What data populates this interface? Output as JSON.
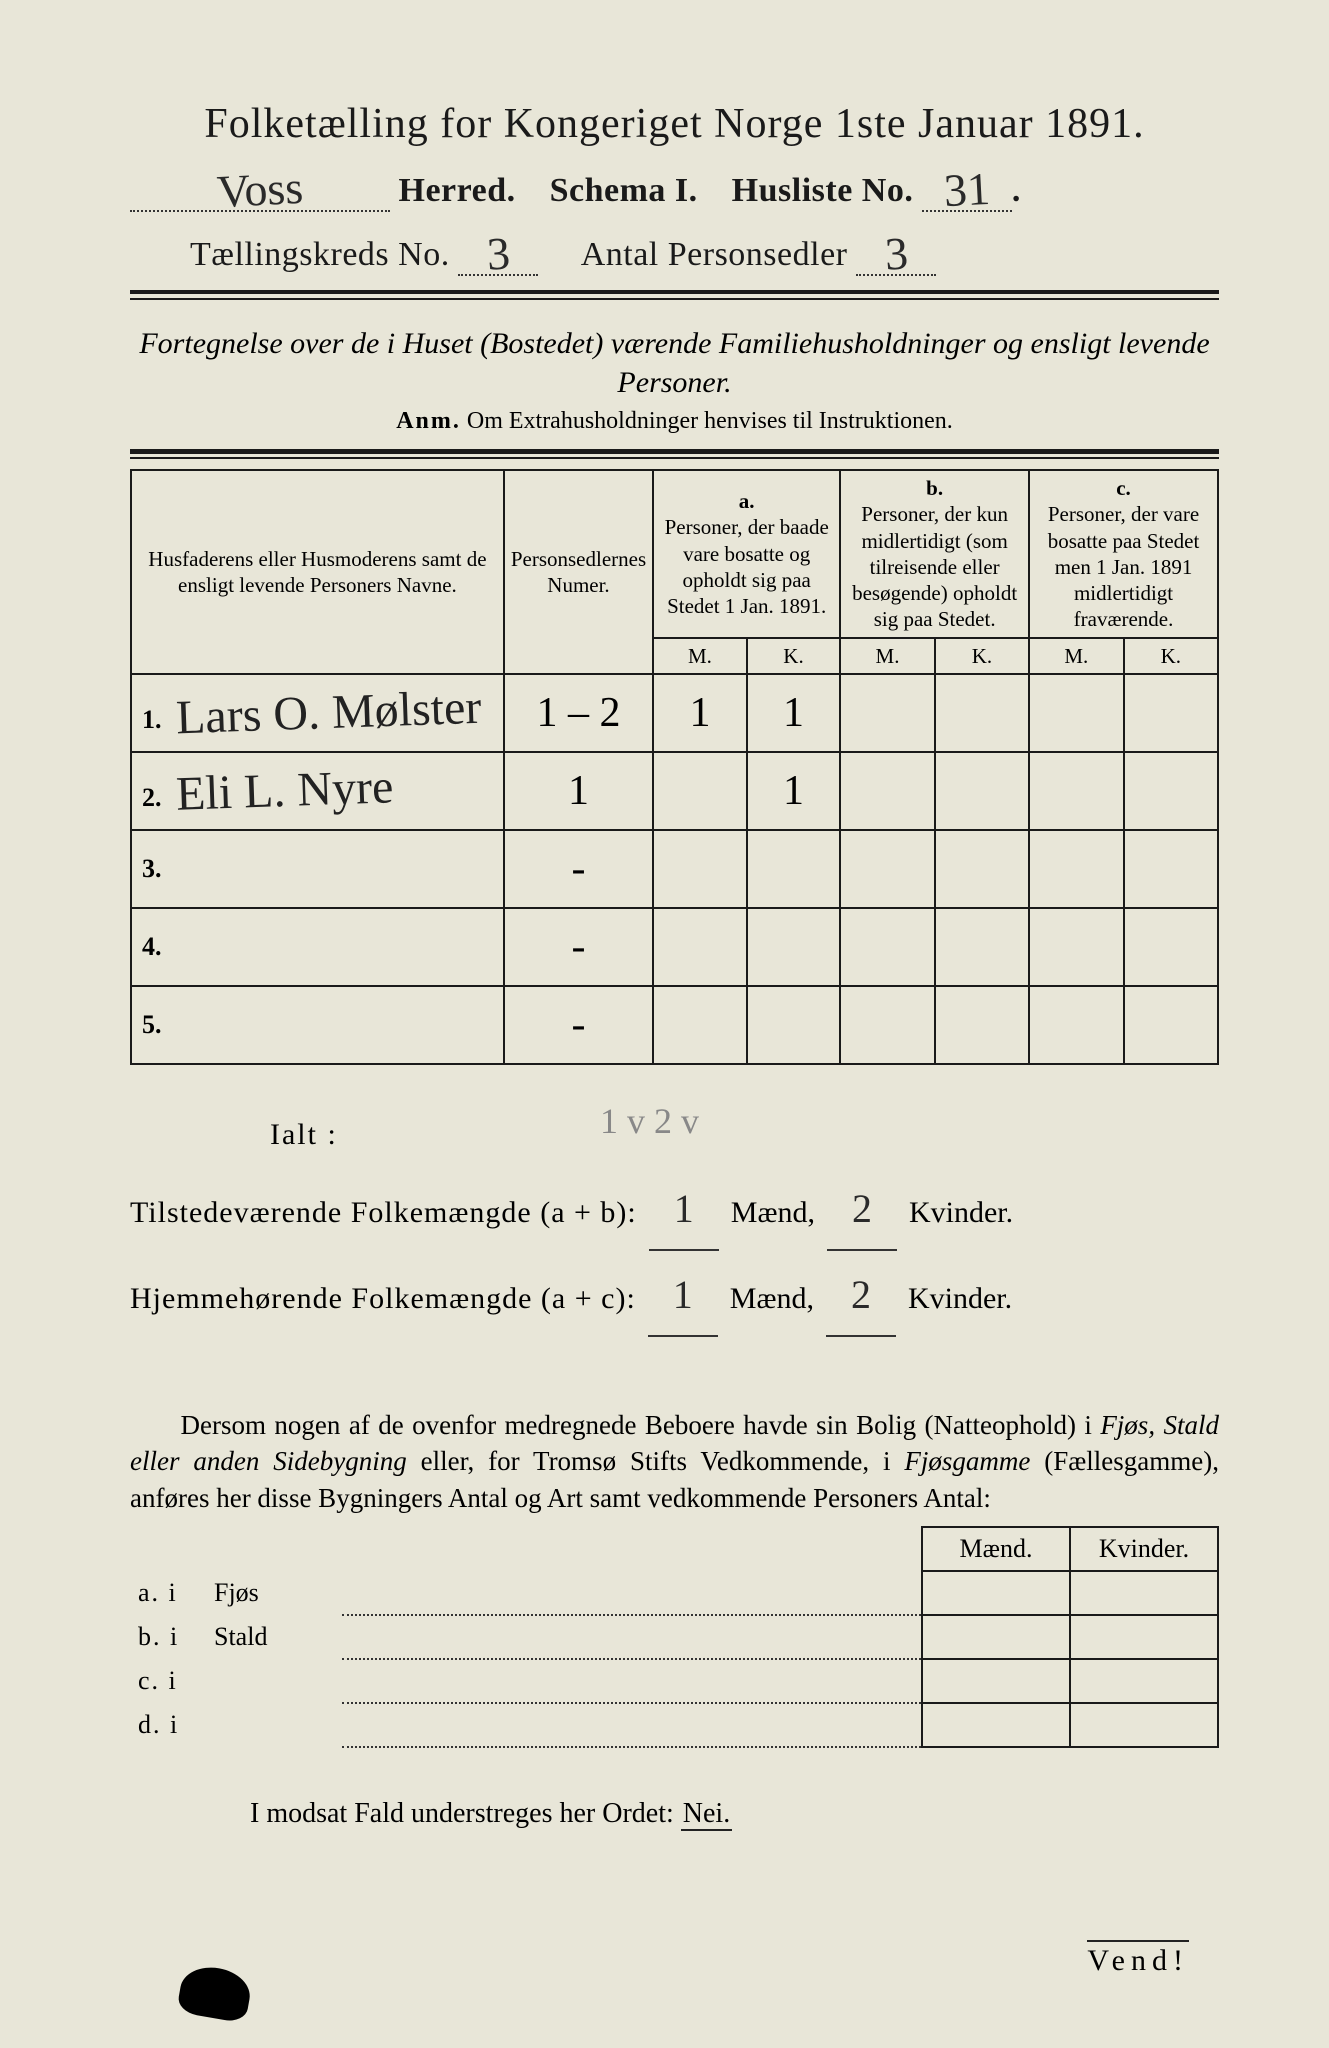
{
  "title": "Folketælling for Kongeriget Norge 1ste Januar 1891.",
  "herred_value": "Voss",
  "herred_label": "Herred.",
  "schema_label": "Schema I.",
  "husliste_label": "Husliste No.",
  "husliste_value": "31",
  "kreds_label": "Tællingskreds No.",
  "kreds_value": "3",
  "antal_label": "Antal Personsedler",
  "antal_value": "3",
  "intro": "Fortegnelse over de i Huset (Bostedet) værende Familiehusholdninger og ensligt levende Personer.",
  "anm_label": "Anm.",
  "anm_text": "Om Extrahusholdninger henvises til Instruktionen.",
  "col_names": "Husfaderens eller Husmoderens samt de ensligt levende Personers Navne.",
  "col_num": "Personsedlernes Numer.",
  "col_a_top": "a.",
  "col_a": "Personer, der baade vare bosatte og opholdt sig paa Stedet 1 Jan. 1891.",
  "col_b_top": "b.",
  "col_b": "Personer, der kun midlertidigt (som tilreisende eller besøgende) opholdt sig paa Stedet.",
  "col_c_top": "c.",
  "col_c": "Personer, der vare bosatte paa Stedet men 1 Jan. 1891 midlertidigt fraværende.",
  "mk_m": "M.",
  "mk_k": "K.",
  "rows": [
    {
      "n": "1.",
      "name": "Lars O. Mølster",
      "num": "1 – 2",
      "am": "1",
      "ak": "1",
      "bm": "",
      "bk": "",
      "cm": "",
      "ck": ""
    },
    {
      "n": "2.",
      "name": "Eli L. Nyre",
      "num": "1",
      "am": "",
      "ak": "1",
      "bm": "",
      "bk": "",
      "cm": "",
      "ck": ""
    },
    {
      "n": "3.",
      "name": "",
      "num": "-",
      "am": "",
      "ak": "",
      "bm": "",
      "bk": "",
      "cm": "",
      "ck": ""
    },
    {
      "n": "4.",
      "name": "",
      "num": "-",
      "am": "",
      "ak": "",
      "bm": "",
      "bk": "",
      "cm": "",
      "ck": ""
    },
    {
      "n": "5.",
      "name": "",
      "num": "-",
      "am": "",
      "ak": "",
      "bm": "",
      "bk": "",
      "cm": "",
      "ck": ""
    }
  ],
  "pencil_note": "1 v 2 v",
  "ialt": "Ialt :",
  "tilst_label": "Tilstedeværende Folkemængde (a + b):",
  "hjem_label": "Hjemmehørende Folkemængde (a + c):",
  "maend": "Mænd,",
  "kvinder": "Kvinder.",
  "tilst_m": "1",
  "tilst_k": "2",
  "hjem_m": "1",
  "hjem_k": "2",
  "para": "Dersom nogen af de ovenfor medregnede Beboere havde sin Bolig (Natteophold) i Fjøs, Stald eller anden Sidebygning eller, for Tromsø Stifts Vedkommende, i Fjøsgamme (Fællesgamme), anføres her disse Bygningers Antal og Art samt vedkommende Personers Antal:",
  "small_head_m": "Mænd.",
  "small_head_k": "Kvinder.",
  "small_rows": [
    {
      "lead": "a.  i",
      "label": "Fjøs"
    },
    {
      "lead": "b.  i",
      "label": "Stald"
    },
    {
      "lead": "c.  i",
      "label": ""
    },
    {
      "lead": "d.  i",
      "label": ""
    }
  ],
  "modsat": "I modsat Fald understreges her Ordet:",
  "nei": "Nei.",
  "vend": "Vend!"
}
